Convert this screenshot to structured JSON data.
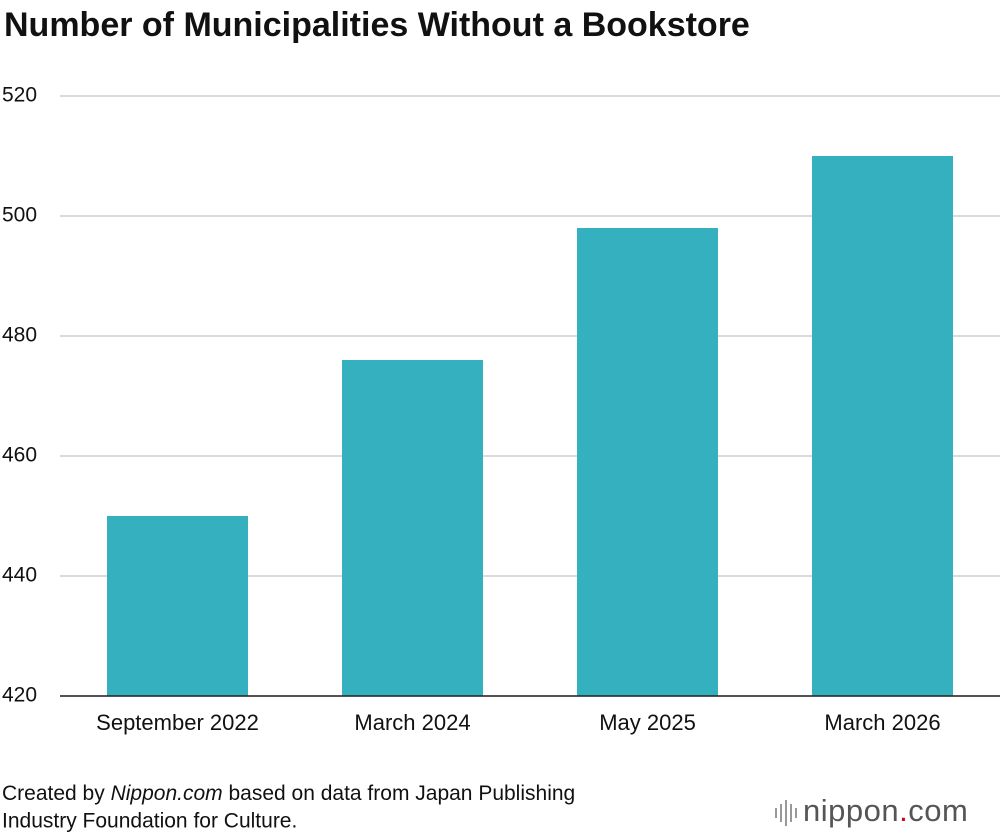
{
  "chart_data": {
    "type": "bar",
    "title": "Number of Municipalities Without a Bookstore",
    "categories": [
      "September 2022",
      "March 2024",
      "May 2025",
      "March 2026"
    ],
    "values": [
      450,
      476,
      498,
      510
    ],
    "color": "#35b0bf",
    "ylim": [
      420,
      520
    ],
    "yticks": [
      420,
      440,
      460,
      480,
      500,
      520
    ],
    "grid": true
  },
  "source": {
    "prefix": "Created by",
    "name": "Nippon.com",
    "line1_rest": "based on data from Japan Publishing",
    "line2": "Industry Foundation for Culture."
  },
  "logo": {
    "name": "nippon",
    "dot": ".",
    "tld": "com"
  }
}
